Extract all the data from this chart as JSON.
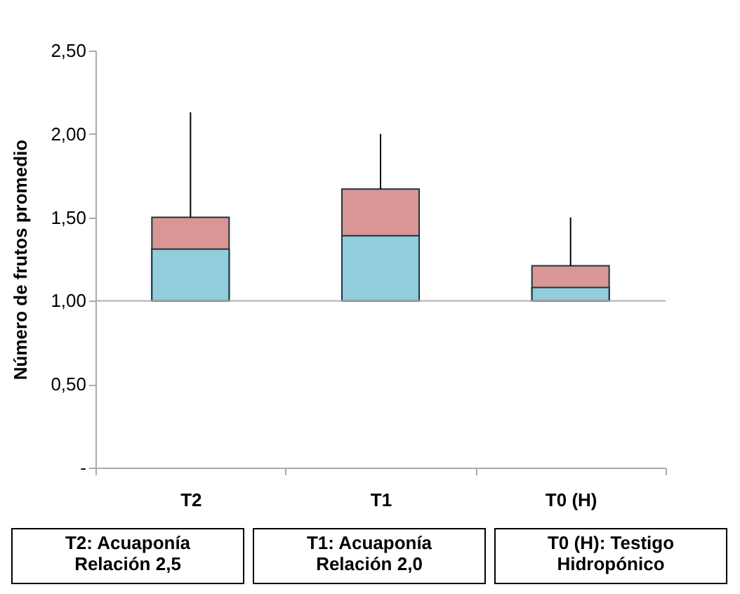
{
  "chart_data": {
    "type": "box",
    "ylabel": "Número de frutos promedio",
    "categories": [
      "T2",
      "T1",
      "T0 (H)"
    ],
    "series": [
      {
        "color": "#d99694",
        "colors": [
          "#92cddc",
          "#92cddc",
          "#92cddc"
        ],
        "boxes": [
          {
            "low": 1.0,
            "q1": 1.0,
            "median": 1.31,
            "q3": 1.5,
            "high": 2.13
          },
          {
            "low": 1.0,
            "q1": 1.0,
            "median": 1.39,
            "q3": 1.67,
            "high": 2.0
          },
          {
            "low": 1.0,
            "q1": 1.0,
            "median": 1.08,
            "q3": 1.21,
            "high": 1.5
          }
        ]
      }
    ],
    "ylim": [
      0,
      2.5
    ],
    "yticks": [
      {
        "value": 0,
        "label": "-"
      },
      {
        "value": 0.5,
        "label": "0,50"
      },
      {
        "value": 1,
        "label": "1,00"
      },
      {
        "value": 1.5,
        "label": "1,50"
      },
      {
        "value": 2,
        "label": "2,00"
      },
      {
        "value": 2.5,
        "label": "2,50"
      }
    ],
    "ref_lines": [
      {
        "axis": "y",
        "value": 1,
        "color": "#b0b0b0"
      }
    ],
    "grid": false,
    "annotations": [
      "T2: Acuaponía\nRelación 2,5",
      "T1: Acuaponía\nRelación 2,0",
      "T0 (H): Testigo\nHidropónico"
    ]
  }
}
